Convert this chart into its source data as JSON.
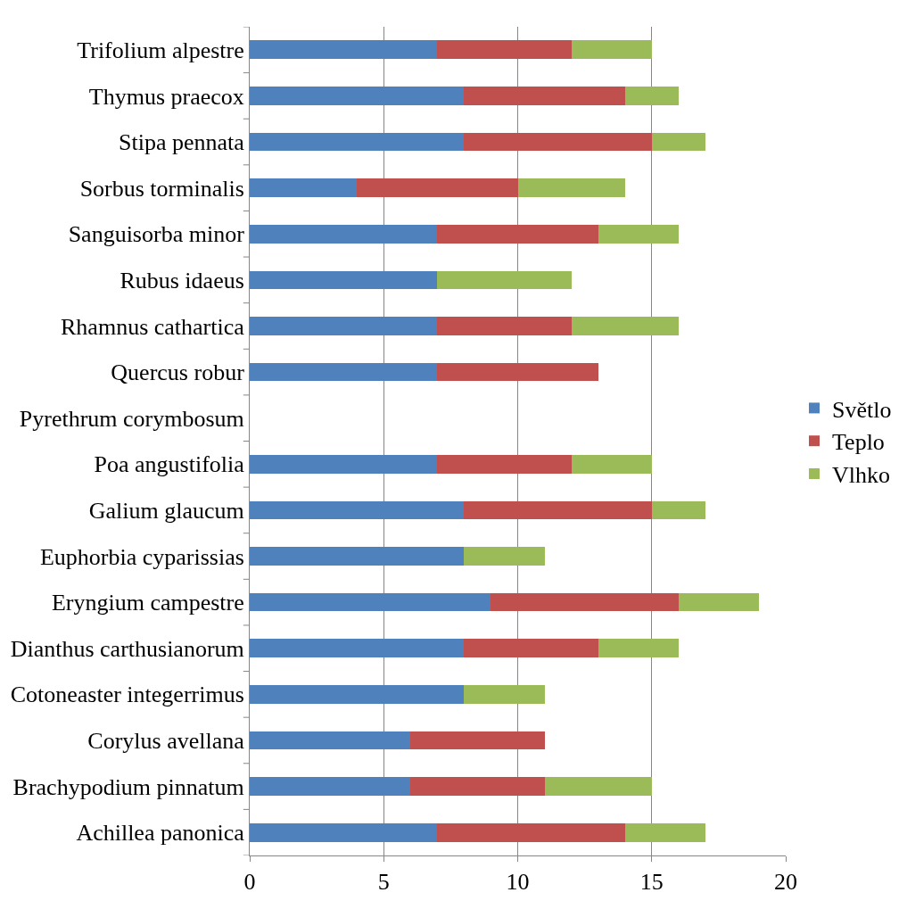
{
  "chart_data": {
    "type": "bar",
    "orientation": "horizontal",
    "stacked": true,
    "categories": [
      "Trifolium alpestre",
      "Thymus praecox",
      "Stipa pennata",
      "Sorbus torminalis",
      "Sanguisorba minor",
      "Rubus idaeus",
      "Rhamnus cathartica",
      "Quercus robur",
      "Pyrethrum corymbosum",
      "Poa angustifolia",
      "Galium glaucum",
      "Euphorbia cyparissias",
      "Eryngium campestre",
      "Dianthus carthusianorum",
      "Cotoneaster integerrimus",
      "Corylus avellana",
      "Brachypodium pinnatum",
      "Achillea panonica"
    ],
    "series": [
      {
        "name": "Světlo",
        "color": "#4f81bd",
        "values": [
          7,
          8,
          8,
          4,
          7,
          7,
          7,
          7,
          null,
          7,
          8,
          8,
          9,
          8,
          8,
          6,
          6,
          7
        ]
      },
      {
        "name": "Teplo",
        "color": "#c0504d",
        "values": [
          5,
          6,
          7,
          6,
          6,
          null,
          5,
          6,
          null,
          5,
          7,
          null,
          7,
          5,
          null,
          5,
          5,
          7
        ]
      },
      {
        "name": "Vlhko",
        "color": "#9bbb59",
        "values": [
          3,
          2,
          2,
          4,
          3,
          5,
          4,
          null,
          null,
          3,
          2,
          3,
          3,
          3,
          3,
          null,
          4,
          3
        ]
      }
    ],
    "xlim": [
      0,
      20
    ],
    "xticks": [
      0,
      5,
      10,
      15,
      20
    ],
    "grid": "x",
    "legend": "right"
  }
}
